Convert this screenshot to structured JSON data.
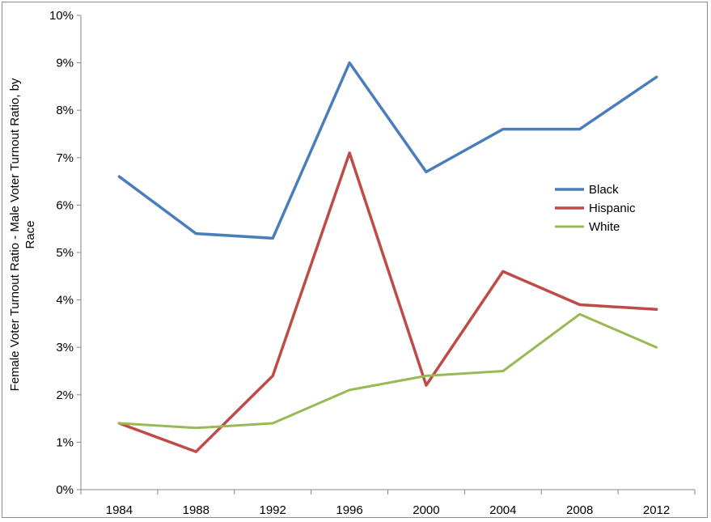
{
  "chart_data": {
    "type": "line",
    "title": "",
    "xlabel": "",
    "ylabel_lines": [
      "Female Voter Turnout Ratio - Male Voter Turnout Ratio, by",
      "Race"
    ],
    "x": [
      "1984",
      "1988",
      "1992",
      "1996",
      "2000",
      "2004",
      "2008",
      "2012"
    ],
    "ylim": [
      0,
      10
    ],
    "yticks": [
      "0%",
      "1%",
      "2%",
      "3%",
      "4%",
      "5%",
      "6%",
      "7%",
      "8%",
      "9%",
      "10%"
    ],
    "grid": false,
    "legend_position": "right",
    "series": [
      {
        "name": "Black",
        "color": "#4a7ebb",
        "values": [
          6.6,
          5.4,
          5.3,
          9.0,
          6.7,
          7.6,
          7.6,
          8.7
        ]
      },
      {
        "name": "Hispanic",
        "color": "#be4b48",
        "values": [
          1.4,
          0.8,
          2.4,
          7.1,
          2.2,
          4.6,
          3.9,
          3.8
        ]
      },
      {
        "name": "White",
        "color": "#98b954",
        "values": [
          1.4,
          1.3,
          1.4,
          2.1,
          2.4,
          2.5,
          3.7,
          3.0
        ]
      }
    ]
  }
}
